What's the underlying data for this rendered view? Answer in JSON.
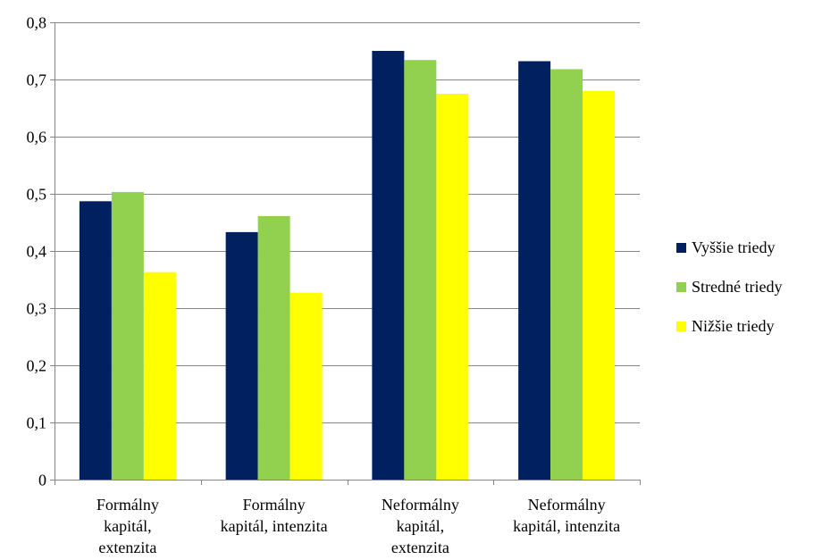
{
  "chart_data": {
    "type": "bar",
    "categories": [
      [
        "Formálny",
        "kapitál,",
        "extenzita"
      ],
      [
        "Formálny",
        "kapitál, intenzita"
      ],
      [
        "Neformálny",
        "kapitál,",
        "extenzita"
      ],
      [
        "Neformálny",
        "kapitál, intenzita"
      ]
    ],
    "series": [
      {
        "name": "Vyššie triedy",
        "color": "#002060",
        "values": [
          0.487,
          0.433,
          0.75,
          0.732
        ]
      },
      {
        "name": "Stredné triedy",
        "color": "#92D050",
        "values": [
          0.503,
          0.461,
          0.734,
          0.718
        ]
      },
      {
        "name": "Nižšie triedy",
        "color": "#FFFF00",
        "values": [
          0.363,
          0.327,
          0.675,
          0.68
        ]
      }
    ],
    "ylim": [
      0,
      0.8
    ],
    "yticks": [
      "0",
      "0,1",
      "0,2",
      "0,3",
      "0,4",
      "0,5",
      "0,6",
      "0,7",
      "0,8"
    ],
    "grid": true,
    "legend_position": "right",
    "title": "",
    "xlabel": "",
    "ylabel": ""
  }
}
